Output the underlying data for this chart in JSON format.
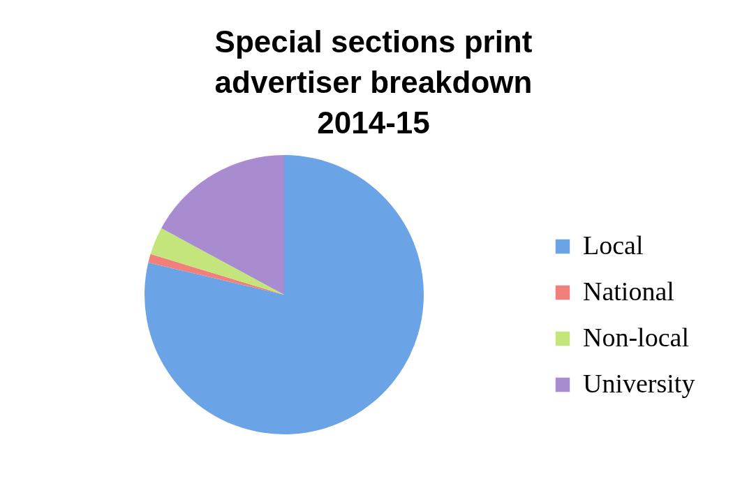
{
  "chart_data": {
    "type": "pie",
    "title": "Special sections print advertiser breakdown 2014-15",
    "categories": [
      "Local",
      "National",
      "Non-local",
      "University"
    ],
    "values": [
      78.7,
      1,
      3.2,
      17.1
    ],
    "colors": [
      "#6ba4e6",
      "#f08079",
      "#c4e57c",
      "#a98ccf"
    ],
    "legend": "right"
  }
}
